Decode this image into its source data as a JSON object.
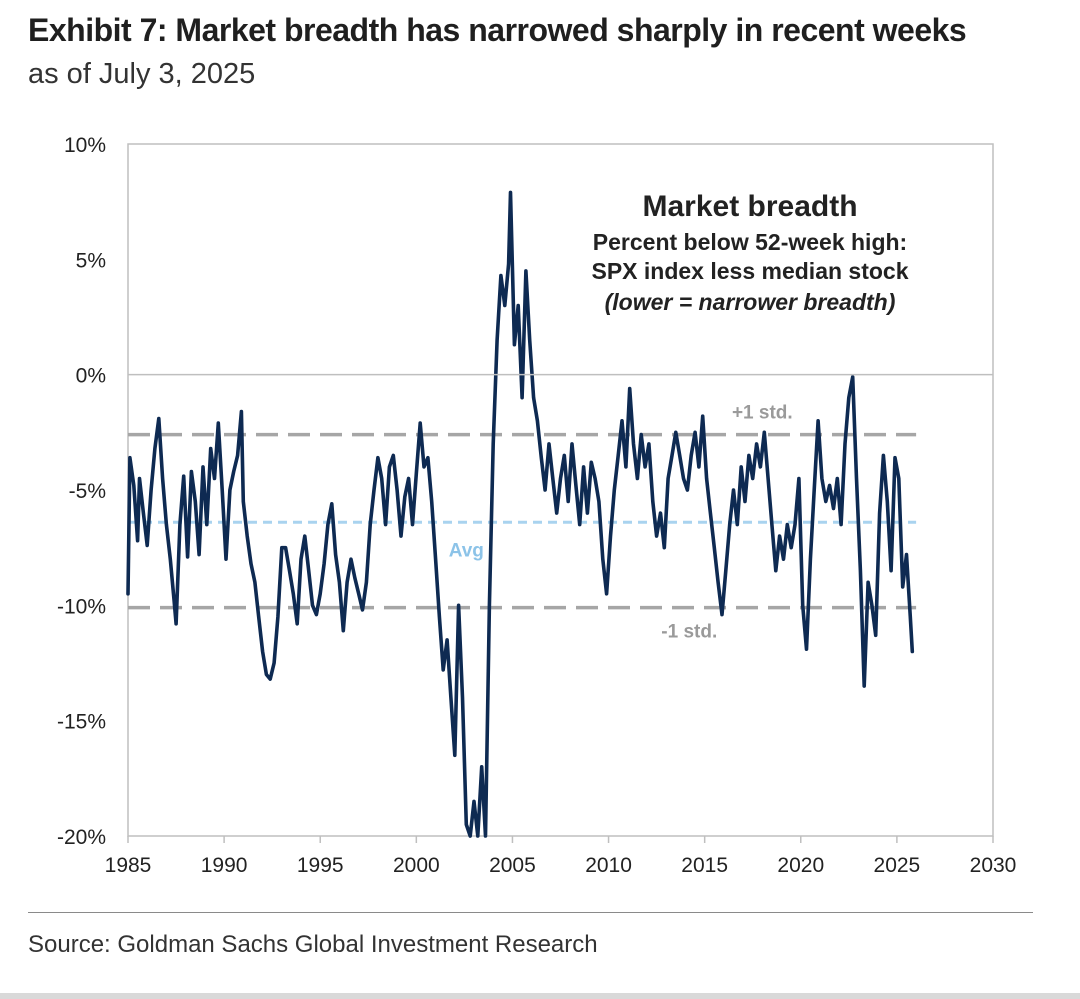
{
  "header": {
    "title": "Exhibit 7: Market breadth has narrowed sharply in recent weeks",
    "subtitle": "as of July 3, 2025"
  },
  "footer": {
    "source": "Source: Goldman Sachs Global Investment Research"
  },
  "chart_data": {
    "type": "line",
    "title": "Market breadth",
    "subtitle_lines": [
      "Percent below 52-week high:",
      "SPX index less median stock"
    ],
    "note": "(lower = narrower breadth)",
    "xlabel": "",
    "ylabel": "",
    "xlim": [
      1985,
      2030
    ],
    "ylim": [
      -20,
      10
    ],
    "x_ticks": [
      1985,
      1990,
      1995,
      2000,
      2005,
      2010,
      2015,
      2020,
      2025,
      2030
    ],
    "y_ticks": [
      10,
      5,
      0,
      -5,
      -10,
      -15,
      -20
    ],
    "y_tick_labels": [
      "10%",
      "5%",
      "0%",
      "-5%",
      "-10%",
      "-15%",
      "-20%"
    ],
    "grid": false,
    "zero_line": true,
    "colors": {
      "series": "#0e2a52",
      "avg": "#a9d3ef",
      "std": "#a6a6a6",
      "std_label": "#9a9a9a",
      "avg_label": "#8cc3e8"
    },
    "reference_lines": [
      {
        "label": "+1 std.",
        "value": -2.6,
        "style": "dashed"
      },
      {
        "label": "Avg",
        "value": -6.4,
        "style": "dashed"
      },
      {
        "label": "-1 std.",
        "value": -10.1,
        "style": "dashed"
      }
    ],
    "series": [
      {
        "name": "",
        "points": [
          [
            1985.0,
            -9.5
          ],
          [
            1985.1,
            -3.6
          ],
          [
            1985.3,
            -4.8
          ],
          [
            1985.5,
            -7.2
          ],
          [
            1985.6,
            -4.5
          ],
          [
            1985.8,
            -6.0
          ],
          [
            1986.0,
            -7.4
          ],
          [
            1986.2,
            -5.0
          ],
          [
            1986.4,
            -3.2
          ],
          [
            1986.6,
            -1.9
          ],
          [
            1986.8,
            -4.5
          ],
          [
            1987.0,
            -6.5
          ],
          [
            1987.2,
            -8.0
          ],
          [
            1987.4,
            -9.8
          ],
          [
            1987.5,
            -10.8
          ],
          [
            1987.7,
            -6.5
          ],
          [
            1987.9,
            -4.4
          ],
          [
            1988.1,
            -7.9
          ],
          [
            1988.3,
            -4.2
          ],
          [
            1988.5,
            -5.5
          ],
          [
            1988.7,
            -7.8
          ],
          [
            1988.9,
            -4.0
          ],
          [
            1989.1,
            -6.5
          ],
          [
            1989.3,
            -3.2
          ],
          [
            1989.5,
            -4.5
          ],
          [
            1989.7,
            -2.1
          ],
          [
            1989.9,
            -5.0
          ],
          [
            1990.1,
            -8.0
          ],
          [
            1990.3,
            -5.0
          ],
          [
            1990.5,
            -4.2
          ],
          [
            1990.7,
            -3.5
          ],
          [
            1990.9,
            -1.6
          ],
          [
            1991.0,
            -5.5
          ],
          [
            1991.2,
            -7.0
          ],
          [
            1991.4,
            -8.2
          ],
          [
            1991.6,
            -9.0
          ],
          [
            1991.8,
            -10.5
          ],
          [
            1992.0,
            -12.0
          ],
          [
            1992.2,
            -13.0
          ],
          [
            1992.4,
            -13.2
          ],
          [
            1992.6,
            -12.5
          ],
          [
            1992.8,
            -10.5
          ],
          [
            1993.0,
            -7.5
          ],
          [
            1993.2,
            -7.5
          ],
          [
            1993.4,
            -8.5
          ],
          [
            1993.6,
            -9.5
          ],
          [
            1993.8,
            -10.8
          ],
          [
            1994.0,
            -8.0
          ],
          [
            1994.2,
            -7.0
          ],
          [
            1994.4,
            -8.5
          ],
          [
            1994.6,
            -10.0
          ],
          [
            1994.8,
            -10.4
          ],
          [
            1995.0,
            -9.5
          ],
          [
            1995.2,
            -8.2
          ],
          [
            1995.4,
            -6.5
          ],
          [
            1995.6,
            -5.6
          ],
          [
            1995.8,
            -7.8
          ],
          [
            1996.0,
            -9.0
          ],
          [
            1996.2,
            -11.1
          ],
          [
            1996.4,
            -9.0
          ],
          [
            1996.6,
            -8.0
          ],
          [
            1996.8,
            -8.8
          ],
          [
            1997.0,
            -9.5
          ],
          [
            1997.2,
            -10.2
          ],
          [
            1997.4,
            -9.0
          ],
          [
            1997.6,
            -6.5
          ],
          [
            1997.8,
            -5.0
          ],
          [
            1998.0,
            -3.6
          ],
          [
            1998.2,
            -4.5
          ],
          [
            1998.4,
            -6.5
          ],
          [
            1998.6,
            -4.0
          ],
          [
            1998.8,
            -3.5
          ],
          [
            1999.0,
            -5.0
          ],
          [
            1999.2,
            -7.0
          ],
          [
            1999.4,
            -5.3
          ],
          [
            1999.6,
            -4.5
          ],
          [
            1999.8,
            -6.5
          ],
          [
            2000.0,
            -4.3
          ],
          [
            2000.2,
            -2.1
          ],
          [
            2000.4,
            -4.0
          ],
          [
            2000.6,
            -3.6
          ],
          [
            2000.8,
            -5.5
          ],
          [
            2001.0,
            -8.0
          ],
          [
            2001.2,
            -10.5
          ],
          [
            2001.4,
            -12.8
          ],
          [
            2001.6,
            -11.5
          ],
          [
            2001.8,
            -14.0
          ],
          [
            2002.0,
            -16.5
          ],
          [
            2002.2,
            -10.0
          ],
          [
            2002.4,
            -14.0
          ],
          [
            2002.6,
            -19.5
          ],
          [
            2002.8,
            -20.0
          ],
          [
            2003.0,
            -18.5
          ],
          [
            2003.2,
            -20.0
          ],
          [
            2003.4,
            -17.0
          ],
          [
            2003.6,
            -20.0
          ],
          [
            2003.8,
            -10.0
          ],
          [
            2004.0,
            -3.0
          ],
          [
            2004.2,
            1.5
          ],
          [
            2004.4,
            4.3
          ],
          [
            2004.6,
            3.0
          ],
          [
            2004.8,
            4.8
          ],
          [
            2004.9,
            7.9
          ],
          [
            2005.1,
            1.3
          ],
          [
            2005.3,
            3.0
          ],
          [
            2005.5,
            -1.0
          ],
          [
            2005.7,
            4.5
          ],
          [
            2005.9,
            1.5
          ],
          [
            2006.1,
            -1.0
          ],
          [
            2006.3,
            -2.0
          ],
          [
            2006.5,
            -3.6
          ],
          [
            2006.7,
            -5.0
          ],
          [
            2006.9,
            -3.0
          ],
          [
            2007.1,
            -4.5
          ],
          [
            2007.3,
            -6.0
          ],
          [
            2007.5,
            -4.5
          ],
          [
            2007.7,
            -3.5
          ],
          [
            2007.9,
            -5.5
          ],
          [
            2008.1,
            -3.0
          ],
          [
            2008.3,
            -4.8
          ],
          [
            2008.5,
            -6.5
          ],
          [
            2008.7,
            -4.0
          ],
          [
            2008.9,
            -6.0
          ],
          [
            2009.1,
            -3.8
          ],
          [
            2009.3,
            -4.5
          ],
          [
            2009.5,
            -5.5
          ],
          [
            2009.7,
            -8.0
          ],
          [
            2009.9,
            -9.5
          ],
          [
            2010.1,
            -7.0
          ],
          [
            2010.3,
            -5.0
          ],
          [
            2010.5,
            -3.5
          ],
          [
            2010.7,
            -2.0
          ],
          [
            2010.9,
            -4.0
          ],
          [
            2011.1,
            -0.6
          ],
          [
            2011.3,
            -3.0
          ],
          [
            2011.5,
            -4.5
          ],
          [
            2011.7,
            -2.6
          ],
          [
            2011.9,
            -4.0
          ],
          [
            2012.1,
            -3.0
          ],
          [
            2012.3,
            -5.5
          ],
          [
            2012.5,
            -7.0
          ],
          [
            2012.7,
            -6.0
          ],
          [
            2012.9,
            -7.5
          ],
          [
            2013.1,
            -4.5
          ],
          [
            2013.3,
            -3.5
          ],
          [
            2013.5,
            -2.5
          ],
          [
            2013.7,
            -3.5
          ],
          [
            2013.9,
            -4.5
          ],
          [
            2014.1,
            -5.0
          ],
          [
            2014.3,
            -3.5
          ],
          [
            2014.5,
            -2.5
          ],
          [
            2014.7,
            -4.0
          ],
          [
            2014.9,
            -1.8
          ],
          [
            2015.1,
            -4.5
          ],
          [
            2015.3,
            -6.0
          ],
          [
            2015.5,
            -7.5
          ],
          [
            2015.7,
            -9.0
          ],
          [
            2015.9,
            -10.4
          ],
          [
            2016.1,
            -8.5
          ],
          [
            2016.3,
            -6.5
          ],
          [
            2016.5,
            -5.0
          ],
          [
            2016.7,
            -6.5
          ],
          [
            2016.9,
            -4.0
          ],
          [
            2017.1,
            -5.5
          ],
          [
            2017.3,
            -3.5
          ],
          [
            2017.5,
            -4.5
          ],
          [
            2017.7,
            -3.0
          ],
          [
            2017.9,
            -4.0
          ],
          [
            2018.1,
            -2.5
          ],
          [
            2018.3,
            -4.5
          ],
          [
            2018.5,
            -6.5
          ],
          [
            2018.7,
            -8.5
          ],
          [
            2018.9,
            -7.0
          ],
          [
            2019.1,
            -8.0
          ],
          [
            2019.3,
            -6.5
          ],
          [
            2019.5,
            -7.5
          ],
          [
            2019.7,
            -6.5
          ],
          [
            2019.9,
            -4.5
          ],
          [
            2020.1,
            -10.0
          ],
          [
            2020.3,
            -11.9
          ],
          [
            2020.5,
            -8.0
          ],
          [
            2020.7,
            -5.0
          ],
          [
            2020.9,
            -2.0
          ],
          [
            2021.1,
            -4.5
          ],
          [
            2021.3,
            -5.5
          ],
          [
            2021.5,
            -4.8
          ],
          [
            2021.7,
            -5.8
          ],
          [
            2021.9,
            -4.5
          ],
          [
            2022.1,
            -6.5
          ],
          [
            2022.3,
            -3.0
          ],
          [
            2022.5,
            -1.0
          ],
          [
            2022.7,
            -0.1
          ],
          [
            2022.9,
            -4.5
          ],
          [
            2023.1,
            -8.5
          ],
          [
            2023.3,
            -13.5
          ],
          [
            2023.5,
            -9.0
          ],
          [
            2023.7,
            -10.0
          ],
          [
            2023.9,
            -11.3
          ],
          [
            2024.1,
            -6.0
          ],
          [
            2024.3,
            -3.5
          ],
          [
            2024.5,
            -5.5
          ],
          [
            2024.7,
            -8.5
          ],
          [
            2024.9,
            -3.6
          ],
          [
            2025.1,
            -4.5
          ],
          [
            2025.3,
            -9.2
          ],
          [
            2025.5,
            -7.8
          ],
          [
            2025.7,
            -10.5
          ],
          [
            2025.8,
            -12.0
          ]
        ]
      }
    ]
  }
}
